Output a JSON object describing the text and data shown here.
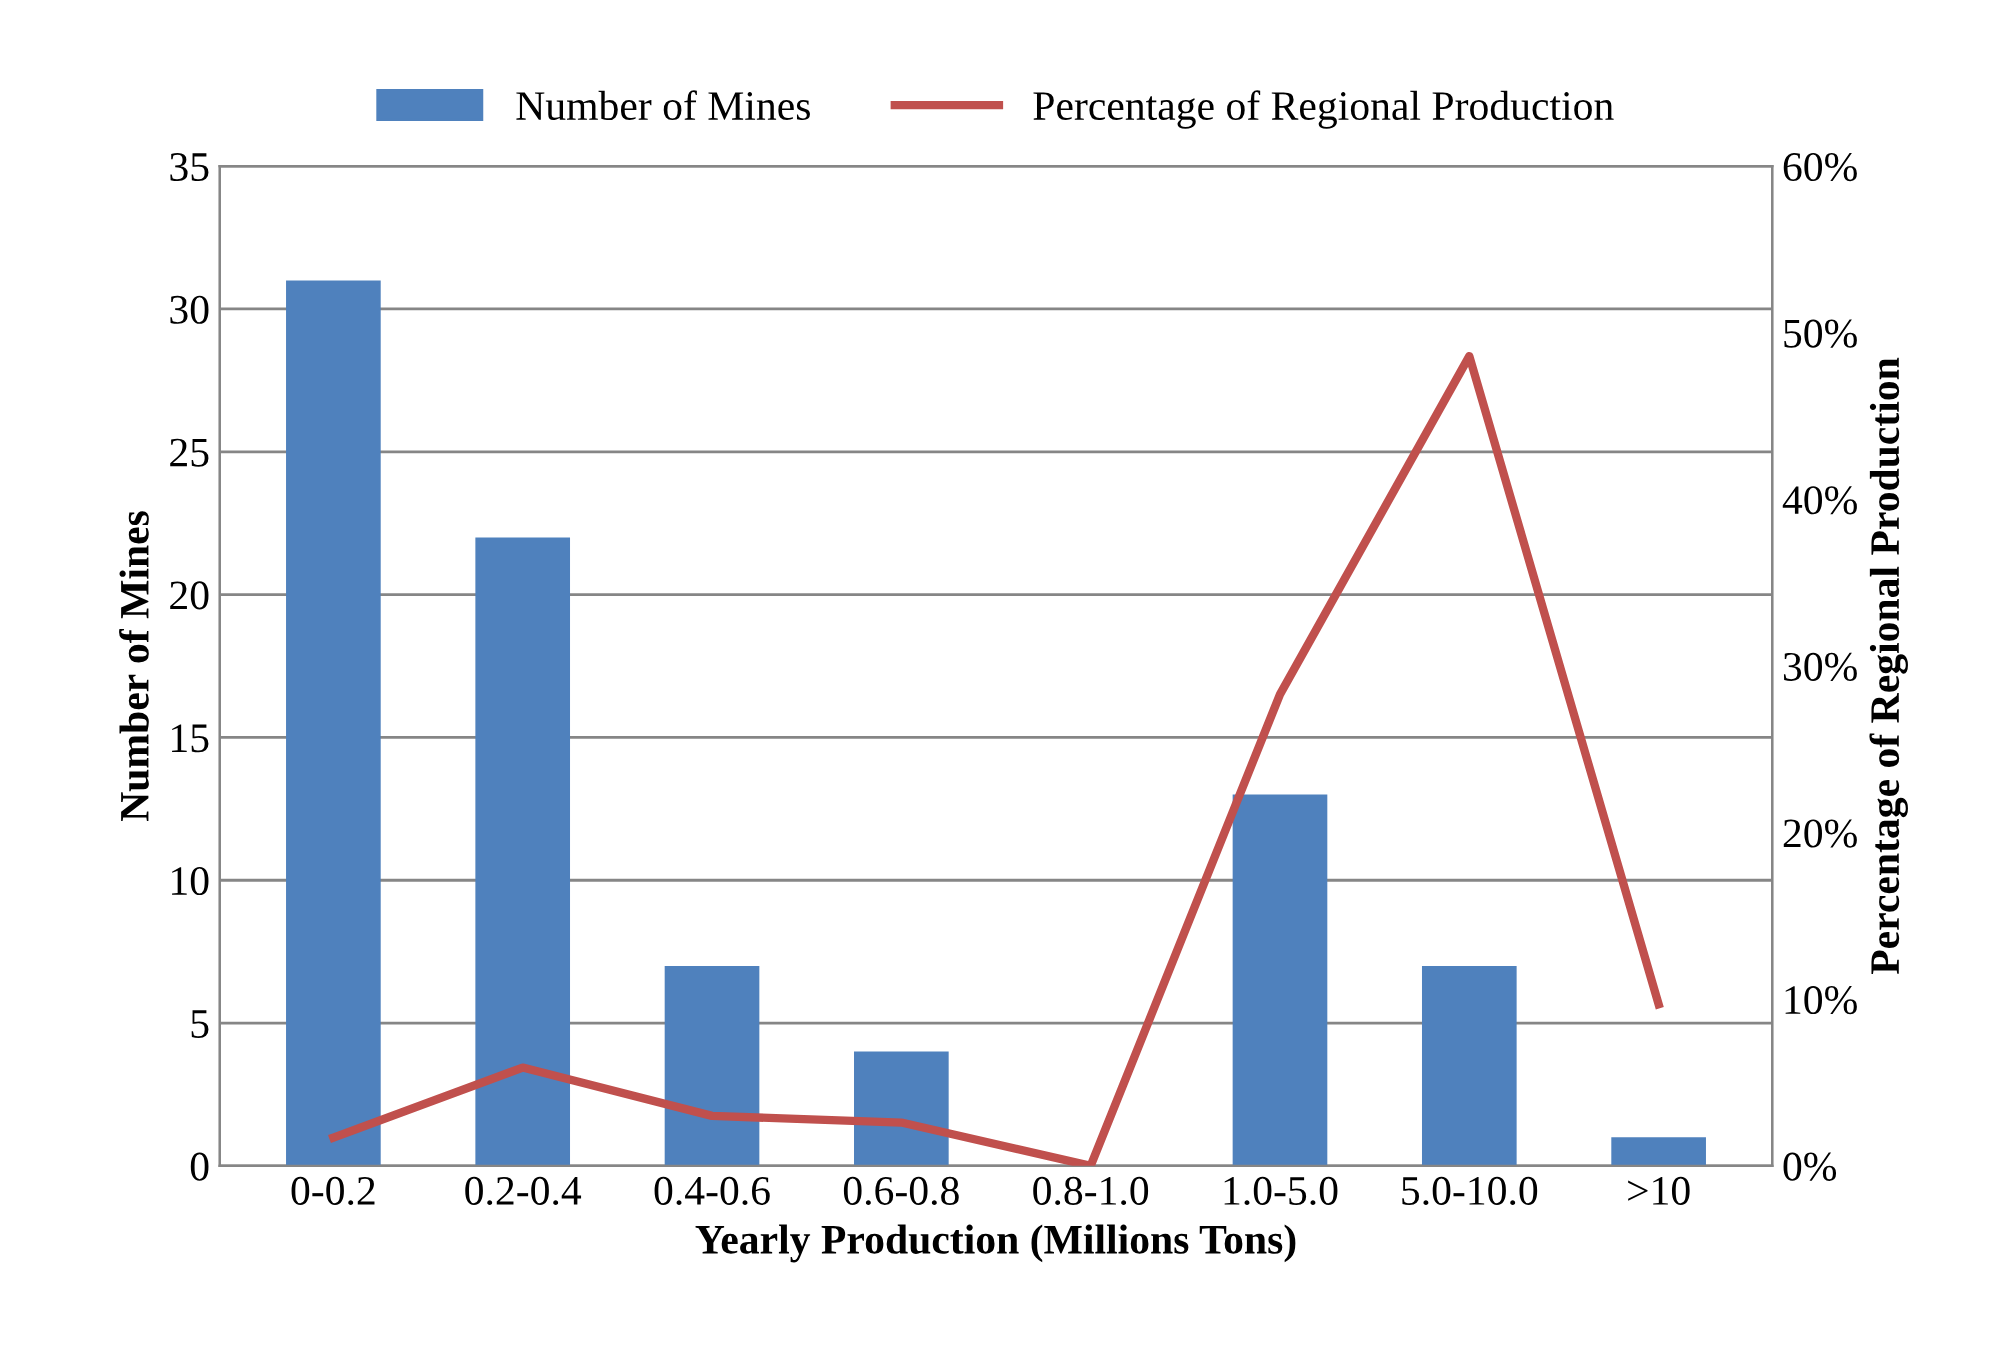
{
  "chart_data": {
    "type": "bar",
    "xlabel": "Yearly Production (Millions Tons)",
    "ylabel": "Number of Mines",
    "y2label": "Percentage of Regional Production",
    "categories": [
      "0-0.2",
      "0.2-0.4",
      "0.4-0.6",
      "0.6-0.8",
      "0.8-1.0",
      "1.0-5.0",
      "5.0-10.0",
      ">10"
    ],
    "series": [
      {
        "name": "Number of Mines",
        "color": "#4f81bd",
        "values": [
          31,
          22,
          7,
          4,
          0,
          13,
          7,
          1
        ]
      },
      {
        "name": "Percentage of Regional Production",
        "type": "line",
        "axis": "y2",
        "color": "#c0504d",
        "values": [
          1.7,
          5.9,
          3.0,
          2.6,
          0,
          28.3,
          48.6,
          9.7
        ]
      }
    ],
    "ylim": [
      0,
      35
    ],
    "yticks": [
      0,
      5,
      10,
      15,
      20,
      25,
      30,
      35
    ],
    "y2lim": [
      0,
      60
    ],
    "y2ticks": [
      {
        "value": 0,
        "label": "0%"
      },
      {
        "value": 10,
        "label": "10%"
      },
      {
        "value": 20,
        "label": "20%"
      },
      {
        "value": 30,
        "label": "30%"
      },
      {
        "value": 40,
        "label": "40%"
      },
      {
        "value": 50,
        "label": "50%"
      },
      {
        "value": 60,
        "label": "60%"
      }
    ],
    "grid": "y",
    "legend": "top",
    "marker": "none",
    "line_style": "solid"
  }
}
